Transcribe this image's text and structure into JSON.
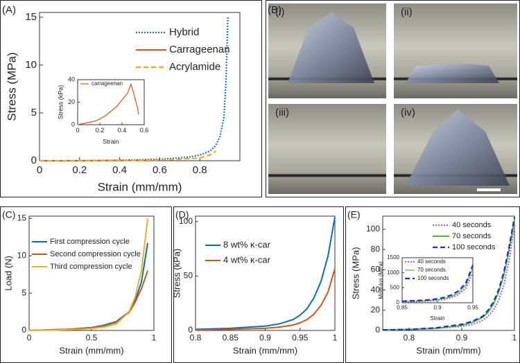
{
  "chart_data": [
    {
      "type": "line",
      "panel_label": "(A)",
      "x_label": "Strain (mm/mm)",
      "y_label": "Stress (MPa)",
      "xlim": [
        0,
        1
      ],
      "ylim": [
        0,
        15.5
      ],
      "xticks": [
        0,
        0.2,
        0.4,
        0.6,
        0.8
      ],
      "yticks": [
        0,
        5,
        10,
        15
      ],
      "series": [
        {
          "name": "Hybrid",
          "color": "#1f77b4",
          "style": "dotted",
          "x": [
            0,
            0.2,
            0.4,
            0.5,
            0.6,
            0.7,
            0.75,
            0.8,
            0.85,
            0.88,
            0.9,
            0.92,
            0.93,
            0.94
          ],
          "values": [
            0,
            0,
            0.05,
            0.1,
            0.15,
            0.3,
            0.4,
            0.6,
            1.0,
            1.6,
            2.5,
            4.5,
            8,
            15
          ]
        },
        {
          "name": "Carrageenan",
          "color": "#d95319",
          "style": "solid",
          "x": [
            0,
            0.1,
            0.2,
            0.3,
            0.4,
            0.47,
            0.5,
            0.53,
            0.55
          ],
          "values": [
            0,
            0.002,
            0.008,
            0.015,
            0.025,
            0.036,
            0.03,
            0.025,
            0.01
          ]
        },
        {
          "name": "Acrylamide",
          "color": "#f5a623",
          "style": "dashed",
          "x": [
            0,
            0.2,
            0.4,
            0.6,
            0.7,
            0.8,
            0.85,
            0.88
          ],
          "values": [
            0,
            0,
            0.02,
            0.08,
            0.15,
            0.3,
            0.6,
            1.0
          ]
        }
      ],
      "inset": {
        "x_label": "Strain",
        "y_label": "Stress (kPa)",
        "xlim": [
          0,
          0.6
        ],
        "ylim": [
          0,
          40
        ],
        "xticks": [
          0,
          0.2,
          0.4,
          0.6
        ],
        "yticks": [
          0,
          20,
          40
        ],
        "series": [
          {
            "name": "carrageenan",
            "color": "#d95319",
            "style": "thin",
            "x": [
              0,
              0.05,
              0.1,
              0.15,
              0.2,
              0.25,
              0.3,
              0.35,
              0.4,
              0.45,
              0.48,
              0.5,
              0.52,
              0.54,
              0.55
            ],
            "values": [
              0,
              1,
              2,
              3,
              5,
              8,
              12,
              16,
              22,
              28,
              36,
              30,
              22,
              15,
              9
            ]
          }
        ]
      }
    },
    {
      "type": "photo",
      "panel_label": "(B)",
      "images": [
        "(i)",
        "(ii)",
        "(iii)",
        "(iv)"
      ]
    },
    {
      "type": "line",
      "panel_label": "(C)",
      "x_label": "Strain (mm/mm)",
      "y_label": "Load (N)",
      "xlim": [
        0,
        1
      ],
      "ylim": [
        0,
        15.3
      ],
      "xticks": [
        0,
        0.5,
        1
      ],
      "yticks": [
        0,
        5,
        10,
        15
      ],
      "series": [
        {
          "name": "First compression cycle",
          "color": "#0072bd",
          "style": "solid",
          "x": [
            0,
            0.1,
            0.2,
            0.3,
            0.4,
            0.5,
            0.6,
            0.7,
            0.8,
            0.85,
            0.9,
            0.95
          ],
          "values": [
            0,
            0.05,
            0.1,
            0.15,
            0.25,
            0.4,
            0.7,
            1.2,
            2.5,
            4,
            6.5,
            11.7
          ]
        },
        {
          "name": "Second compression cycle",
          "color": "#d95319",
          "style": "solid",
          "x": [
            0,
            0.1,
            0.2,
            0.3,
            0.4,
            0.5,
            0.6,
            0.7,
            0.8,
            0.85,
            0.9,
            0.95
          ],
          "values": [
            0,
            0.05,
            0.1,
            0.15,
            0.2,
            0.35,
            0.6,
            1.1,
            2.4,
            3.8,
            5.6,
            8
          ]
        },
        {
          "name": "Third compression cycle",
          "color": "#edb120",
          "style": "solid",
          "x": [
            0,
            0.1,
            0.2,
            0.3,
            0.4,
            0.5,
            0.6,
            0.7,
            0.8,
            0.85,
            0.9,
            0.95
          ],
          "values": [
            0,
            0.02,
            0.05,
            0.1,
            0.15,
            0.25,
            0.45,
            0.9,
            2.5,
            4.5,
            8,
            15
          ]
        }
      ]
    },
    {
      "type": "line",
      "panel_label": "(D)",
      "x_label": "Strain (mm/mm)",
      "y_label": "Stress (kPa)",
      "xlim": [
        0.8,
        1
      ],
      "ylim": [
        0,
        105
      ],
      "xticks": [
        0.8,
        0.85,
        0.9,
        0.95,
        1
      ],
      "yticks": [
        0,
        50,
        100
      ],
      "series": [
        {
          "name": "8 wt% κ-car",
          "color": "#0072bd",
          "style": "solid",
          "x": [
            0.8,
            0.85,
            0.9,
            0.92,
            0.94,
            0.95,
            0.96,
            0.97,
            0.98,
            0.99,
            1
          ],
          "values": [
            1,
            2,
            4,
            6,
            10,
            14,
            20,
            30,
            45,
            68,
            104
          ]
        },
        {
          "name": "4 wt% κ-car",
          "color": "#d95319",
          "style": "solid",
          "x": [
            0.8,
            0.85,
            0.9,
            0.92,
            0.94,
            0.95,
            0.96,
            0.97,
            0.98,
            0.99,
            1
          ],
          "values": [
            0.5,
            1,
            2,
            3,
            5,
            7,
            10,
            15,
            23,
            35,
            57
          ]
        }
      ]
    },
    {
      "type": "line",
      "panel_label": "(E)",
      "x_label": "Strain (mm/mm)",
      "y_label": "Stress (MPa)",
      "xlim": [
        0.75,
        1
      ],
      "ylim": [
        0,
        113
      ],
      "xticks": [
        0.8,
        0.9,
        1
      ],
      "yticks": [
        0,
        20,
        40,
        60,
        80,
        100
      ],
      "series": [
        {
          "name": "40 seconds",
          "color": "#b15ee0",
          "style": "dotted",
          "x": [
            0.75,
            0.8,
            0.85,
            0.9,
            0.92,
            0.94,
            0.95,
            0.96,
            0.97,
            0.98,
            0.99,
            1
          ],
          "values": [
            0.5,
            1,
            2,
            4,
            6,
            10,
            14,
            20,
            30,
            45,
            70,
            104
          ]
        },
        {
          "name": "70 seconds",
          "color": "#4dbf1c",
          "style": "solid",
          "x": [
            0.75,
            0.8,
            0.85,
            0.9,
            0.92,
            0.94,
            0.95,
            0.96,
            0.97,
            0.98,
            0.99,
            1
          ],
          "values": [
            0.5,
            1,
            2,
            5,
            8,
            13,
            18,
            26,
            38,
            55,
            80,
            110
          ]
        },
        {
          "name": "100 seconds",
          "color": "#1a2fd6",
          "style": "dashed",
          "x": [
            0.75,
            0.8,
            0.85,
            0.9,
            0.92,
            0.94,
            0.95,
            0.96,
            0.97,
            0.98,
            0.99,
            1
          ],
          "values": [
            0.5,
            1,
            2.5,
            6,
            9,
            14,
            20,
            28,
            40,
            58,
            83,
            112
          ]
        }
      ],
      "inset": {
        "x_label": "Strain",
        "y_label": "Modulus (MPa)",
        "xlim": [
          0.85,
          0.95
        ],
        "ylim": [
          0,
          1500
        ],
        "xticks": [
          0.85,
          0.9,
          0.95
        ],
        "yticks": [
          0,
          500,
          1000,
          1500
        ],
        "series": [
          {
            "name": "40 seconds",
            "color": "#b15ee0",
            "style": "dotted",
            "x": [
              0.85,
              0.87,
              0.89,
              0.9,
              0.91,
              0.92,
              0.93,
              0.94,
              0.95
            ],
            "values": [
              30,
              40,
              60,
              80,
              110,
              170,
              280,
              480,
              1000
            ]
          },
          {
            "name": "70 seconds",
            "color": "#4dbf1c",
            "style": "thin",
            "x": [
              0.85,
              0.87,
              0.89,
              0.9,
              0.91,
              0.92,
              0.93,
              0.94,
              0.95
            ],
            "values": [
              40,
              50,
              80,
              100,
              140,
              210,
              340,
              580,
              1150
            ]
          },
          {
            "name": "100 seconds",
            "color": "#1a2fd6",
            "style": "dashed",
            "x": [
              0.85,
              0.87,
              0.89,
              0.9,
              0.91,
              0.92,
              0.93,
              0.94,
              0.95
            ],
            "values": [
              50,
              70,
              100,
              130,
              180,
              260,
              400,
              650,
              1250
            ]
          }
        ]
      }
    }
  ]
}
